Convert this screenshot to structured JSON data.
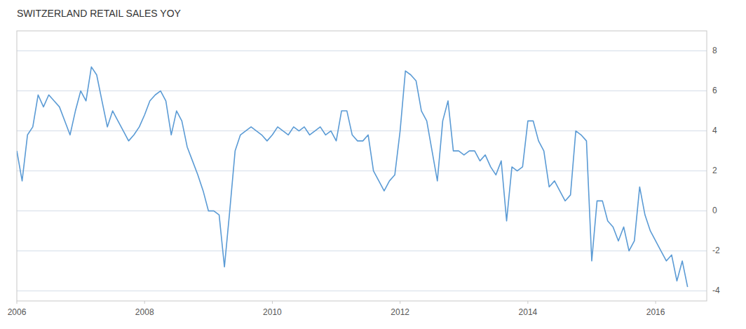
{
  "chart_data": {
    "type": "line",
    "title": "SWITZERLAND RETAIL SALES YOY",
    "color": "#5b9bd5",
    "xlim": [
      2006.0,
      2016.8
    ],
    "ylim": [
      -4.5,
      9.0
    ],
    "xticks": [
      2006,
      2008,
      2010,
      2012,
      2014,
      2016
    ],
    "yticks": [
      -4,
      -2,
      0,
      2,
      4,
      6,
      8
    ],
    "grid": true,
    "x": [
      2006.0,
      2006.083,
      2006.167,
      2006.25,
      2006.333,
      2006.417,
      2006.5,
      2006.583,
      2006.667,
      2006.75,
      2006.833,
      2006.917,
      2007.0,
      2007.083,
      2007.167,
      2007.25,
      2007.333,
      2007.417,
      2007.5,
      2007.583,
      2007.667,
      2007.75,
      2007.833,
      2007.917,
      2008.0,
      2008.083,
      2008.167,
      2008.25,
      2008.333,
      2008.417,
      2008.5,
      2008.583,
      2008.667,
      2008.75,
      2008.833,
      2008.917,
      2009.0,
      2009.083,
      2009.167,
      2009.25,
      2009.333,
      2009.417,
      2009.5,
      2009.583,
      2009.667,
      2009.75,
      2009.833,
      2009.917,
      2010.0,
      2010.083,
      2010.167,
      2010.25,
      2010.333,
      2010.417,
      2010.5,
      2010.583,
      2010.667,
      2010.75,
      2010.833,
      2010.917,
      2011.0,
      2011.083,
      2011.167,
      2011.25,
      2011.333,
      2011.417,
      2011.5,
      2011.583,
      2011.667,
      2011.75,
      2011.833,
      2011.917,
      2012.0,
      2012.083,
      2012.167,
      2012.25,
      2012.333,
      2012.417,
      2012.5,
      2012.583,
      2012.667,
      2012.75,
      2012.833,
      2012.917,
      2013.0,
      2013.083,
      2013.167,
      2013.25,
      2013.333,
      2013.417,
      2013.5,
      2013.583,
      2013.667,
      2013.75,
      2013.833,
      2013.917,
      2014.0,
      2014.083,
      2014.167,
      2014.25,
      2014.333,
      2014.417,
      2014.5,
      2014.583,
      2014.667,
      2014.75,
      2014.833,
      2014.917,
      2015.0,
      2015.083,
      2015.167,
      2015.25,
      2015.333,
      2015.417,
      2015.5,
      2015.583,
      2015.667,
      2015.75,
      2015.833,
      2015.917,
      2016.0,
      2016.083,
      2016.167,
      2016.25,
      2016.333,
      2016.417,
      2016.5
    ],
    "values": [
      3.0,
      1.5,
      3.8,
      4.2,
      5.8,
      5.2,
      5.8,
      5.5,
      5.2,
      4.5,
      3.8,
      5.0,
      6.0,
      5.5,
      7.2,
      6.8,
      5.5,
      4.2,
      5.0,
      4.5,
      4.0,
      3.5,
      3.8,
      4.2,
      4.8,
      5.5,
      5.8,
      6.0,
      5.5,
      3.8,
      5.0,
      4.5,
      3.2,
      2.5,
      1.8,
      1.0,
      0.0,
      0.0,
      -0.2,
      -2.8,
      0.0,
      3.0,
      3.8,
      4.0,
      4.2,
      4.0,
      3.8,
      3.5,
      3.8,
      4.2,
      4.0,
      3.8,
      4.2,
      4.0,
      4.2,
      3.8,
      4.0,
      4.2,
      3.8,
      4.0,
      3.5,
      5.0,
      5.0,
      3.8,
      3.5,
      3.5,
      3.8,
      2.0,
      1.5,
      1.0,
      1.5,
      1.8,
      4.0,
      7.0,
      6.8,
      6.5,
      5.0,
      4.5,
      3.0,
      1.5,
      4.5,
      5.5,
      3.0,
      3.0,
      2.8,
      3.0,
      3.0,
      2.5,
      2.8,
      2.2,
      1.8,
      2.5,
      -0.5,
      2.2,
      2.0,
      2.2,
      4.5,
      4.5,
      3.5,
      3.0,
      1.2,
      1.5,
      1.0,
      0.5,
      0.8,
      4.0,
      3.8,
      3.5,
      -2.5,
      0.5,
      0.5,
      -0.5,
      -0.8,
      -1.5,
      -0.8,
      -2.0,
      -1.5,
      1.2,
      -0.2,
      -1.0,
      -1.5,
      -2.0,
      -2.5,
      -2.2,
      -3.5,
      -2.5,
      -3.8
    ]
  }
}
